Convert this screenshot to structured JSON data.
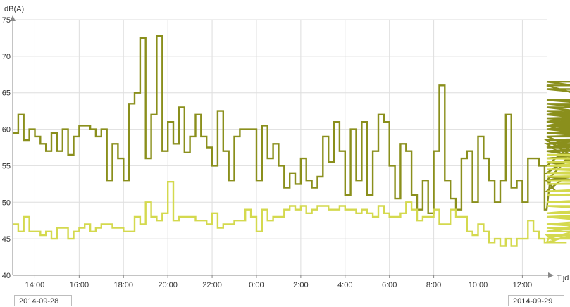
{
  "chart_data": {
    "type": "line",
    "step": true,
    "y_axis_label": "dB(A)",
    "x_axis_label": "Tijd",
    "ylim": [
      40,
      75
    ],
    "y_ticks": [
      "40",
      "45",
      "50",
      "55",
      "60",
      "65",
      "70",
      "75"
    ],
    "x_ticks": [
      "14:00",
      "16:00",
      "18:00",
      "20:00",
      "22:00",
      "0:00",
      "2:00",
      "4:00",
      "6:00",
      "8:00",
      "10:00",
      "12:00"
    ],
    "x_ticks_hours": [
      14,
      16,
      18,
      20,
      22,
      24,
      26,
      28,
      30,
      32,
      34,
      36
    ],
    "xlim_hours": [
      13.0,
      37.1
    ],
    "date_labels": {
      "start": "2014-09-28",
      "end": "2014-09-29"
    },
    "grid": true,
    "series": [
      {
        "color": "#8a8f1c",
        "x_step_hours": 0.25,
        "values": [
          59.5,
          62,
          58.5,
          60,
          59,
          58,
          57,
          59.5,
          57,
          60,
          56.5,
          59,
          60.5,
          60.5,
          60,
          59,
          60,
          53,
          58,
          56,
          53,
          63.5,
          65,
          72.5,
          56,
          62,
          72.8,
          57,
          61,
          58,
          63,
          56.8,
          59,
          62,
          59,
          57.5,
          55,
          62.5,
          57,
          53,
          59,
          60,
          60,
          60,
          53,
          60.5,
          56,
          58,
          55,
          52,
          54,
          52.5,
          56,
          53,
          52,
          53.5,
          59,
          55.5,
          61,
          57,
          51,
          60,
          53,
          61,
          51,
          57,
          62,
          61,
          55,
          50.5,
          58,
          57,
          51,
          49,
          53,
          48.5,
          57,
          66,
          53,
          50.5,
          49,
          56,
          57,
          50,
          59,
          56,
          53,
          50,
          53,
          62,
          52,
          53,
          50,
          56,
          56,
          55,
          49,
          53,
          51.5,
          53,
          53,
          53.5,
          53,
          58,
          54,
          58.5,
          54,
          59,
          55.5,
          54,
          60.5,
          57,
          57,
          55,
          66,
          62,
          60.5,
          63,
          61,
          64,
          62.5,
          60,
          61.5,
          60,
          59.5,
          58,
          60,
          59,
          59.5,
          57.5,
          60.5,
          59.5,
          61,
          58,
          60.5,
          58.5,
          59.5,
          61.5,
          62.5,
          59,
          59,
          60,
          56,
          59.5,
          59.5,
          57.5,
          63.5,
          62,
          66.5,
          61,
          61,
          59.5,
          61.5,
          58,
          62,
          60,
          57,
          60,
          60,
          58,
          62,
          58,
          57.5,
          60,
          61,
          63.5,
          58,
          65.5,
          60,
          56
        ]
      },
      {
        "color": "#d4d94e",
        "x_step_hours": 0.25,
        "values": [
          47,
          46,
          48,
          46,
          46,
          45.5,
          46,
          45,
          46.5,
          46.5,
          45,
          46,
          46.5,
          47,
          46,
          46.5,
          47,
          47,
          46.5,
          46.5,
          46,
          46,
          48,
          47,
          50,
          48,
          47.5,
          48.5,
          52.8,
          47.5,
          48,
          48,
          48,
          47.5,
          47.5,
          47,
          48.5,
          46.5,
          47,
          47,
          47.5,
          47.5,
          49,
          48,
          46,
          49,
          47.5,
          48,
          48,
          49,
          49.5,
          49,
          49.5,
          48.5,
          49,
          49.5,
          49.5,
          49,
          49,
          49.5,
          49,
          49,
          48.5,
          49,
          48.5,
          48,
          49.5,
          48.5,
          48,
          48,
          48.5,
          50,
          49,
          47.5,
          48,
          48,
          49,
          47,
          47,
          49,
          48,
          48,
          46,
          45.5,
          47,
          46,
          44.5,
          45,
          44,
          45,
          44,
          45,
          45,
          47.5,
          46,
          45,
          44.5,
          45.5,
          44.5,
          44.5,
          44.5,
          45.5,
          45,
          45,
          46.5,
          46.5,
          46,
          47,
          46.5,
          46,
          48,
          47,
          47,
          48,
          48.5,
          48.5,
          49.5,
          48.5,
          50,
          50,
          51,
          51.5,
          51.5,
          52.5,
          53,
          53.5,
          54,
          54,
          55,
          55,
          56.5,
          55.5,
          56.5,
          56.5,
          56,
          56.5,
          55.5,
          56,
          56,
          55.5,
          56,
          56,
          56,
          55.5,
          54.5,
          54.5,
          55,
          54.5,
          55,
          54,
          54,
          54.5,
          53,
          54,
          53,
          54,
          53.5,
          53,
          54,
          53,
          53.5,
          54,
          53,
          53,
          54,
          53,
          53.5,
          52.5,
          52.5,
          53,
          52.5,
          53,
          53,
          53,
          53,
          52.5
        ]
      }
    ]
  }
}
